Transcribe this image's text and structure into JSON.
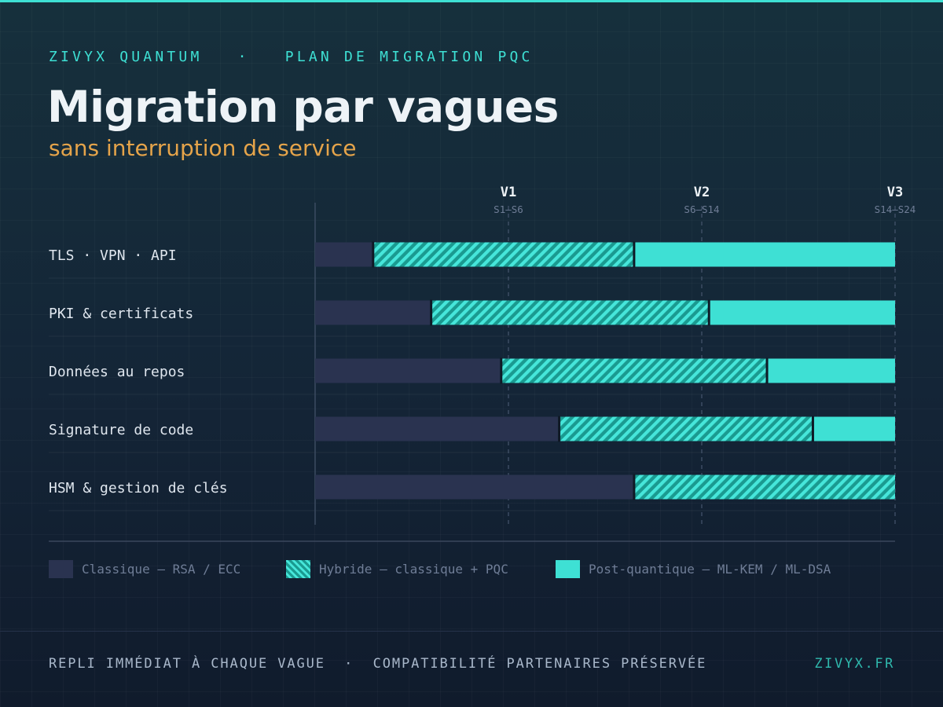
{
  "header": {
    "brand": "ZIVYX QUANTUM",
    "separator": "·",
    "section": "PLAN DE MIGRATION PQC",
    "title": "Migration par vagues",
    "subtitle": "sans interruption de service"
  },
  "colors": {
    "accent": "#3ee0d4",
    "classic": "#2a3350",
    "hybrid_dark": "#1a9a90",
    "hybrid_light": "#46e6da",
    "post_quantum": "#3ee0d4",
    "subtitle": "#e5a44a"
  },
  "chart_data": {
    "type": "bar",
    "orientation": "horizontal",
    "stacked": true,
    "x_unit": "semaines",
    "xlim": [
      0,
      24
    ],
    "milestones": [
      {
        "label": "V1",
        "range": "S1–S6",
        "week": 8
      },
      {
        "label": "V2",
        "range": "S6–S14",
        "week": 16
      },
      {
        "label": "V3",
        "range": "S14–S24",
        "week": 24
      }
    ],
    "categories": [
      "TLS · VPN · API",
      "PKI & certificats",
      "Données au repos",
      "Signature de code",
      "HSM & gestion de clés"
    ],
    "series": [
      {
        "name": "Classique — RSA / ECC",
        "style": "classic",
        "values": [
          2.4,
          4.8,
          7.7,
          10.1,
          13.2
        ]
      },
      {
        "name": "Hybride — classique + PQC",
        "style": "hybrid",
        "values": [
          10.8,
          11.5,
          11.0,
          10.5,
          10.8
        ]
      },
      {
        "name": "Post-quantique — ML-KEM / ML-DSA",
        "style": "post_quantum",
        "values": [
          10.8,
          7.7,
          5.3,
          3.4,
          0
        ]
      }
    ],
    "grid": true,
    "legend": "bottom"
  },
  "footer": {
    "note": "REPLI IMMÉDIAT À CHAQUE VAGUE  ·  COMPATIBILITÉ PARTENAIRES PRÉSERVÉE",
    "url": "ZIVYX.FR"
  }
}
